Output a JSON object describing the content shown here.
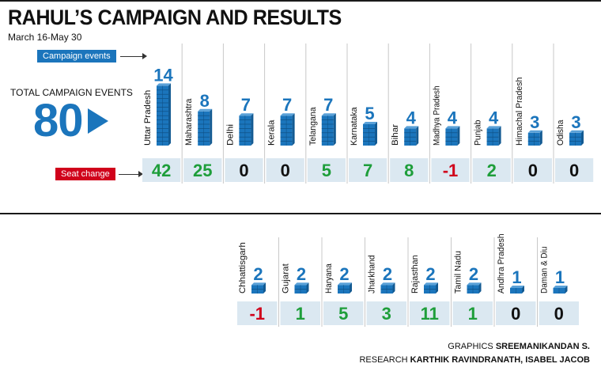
{
  "header": {
    "title": "RAHUL’S CAMPAIGN AND RESULTS",
    "subtitle": "March 16-May 30"
  },
  "summary": {
    "total_label": "TOTAL CAMPAIGN EVENTS",
    "total_value": "80"
  },
  "tags": {
    "campaign_events": "Campaign events",
    "seat_change": "Seat change"
  },
  "colors": {
    "accent_blue": "#1b75bc",
    "positive_green": "#1e9e3a",
    "negative_red": "#d0021b",
    "neutral_black": "#111111",
    "cell_background": "#dbe8f1"
  },
  "credits": {
    "graphics_label": "GRAPHICS",
    "graphics_name": "SREEMANIKANDAN S.",
    "research_label": "RESEARCH",
    "research_names": "KARTHIK RAVINDRANATH, ISABEL JACOB"
  },
  "chart_data": {
    "type": "bar",
    "categories": [
      "Uttar Pradesh",
      "Maharashtra",
      "Delhi",
      "Kerala",
      "Telangana",
      "Karnataka",
      "Bihar",
      "Madhya Pradesh",
      "Punjab",
      "Himachal Pradesh",
      "Odisha",
      "Chhattisgarh",
      "Gujarat",
      "Haryana",
      "Jharkhand",
      "Rajasthan",
      "Tamil Nadu",
      "Andhra Pradesh",
      "Daman & Diu"
    ],
    "series": [
      {
        "name": "Campaign events",
        "values": [
          14,
          8,
          7,
          7,
          7,
          5,
          4,
          4,
          4,
          3,
          3,
          2,
          2,
          2,
          2,
          2,
          2,
          1,
          1
        ]
      },
      {
        "name": "Seat change",
        "values": [
          42,
          25,
          0,
          0,
          5,
          7,
          8,
          -1,
          2,
          0,
          0,
          -1,
          1,
          5,
          3,
          11,
          1,
          0,
          0
        ]
      }
    ]
  }
}
